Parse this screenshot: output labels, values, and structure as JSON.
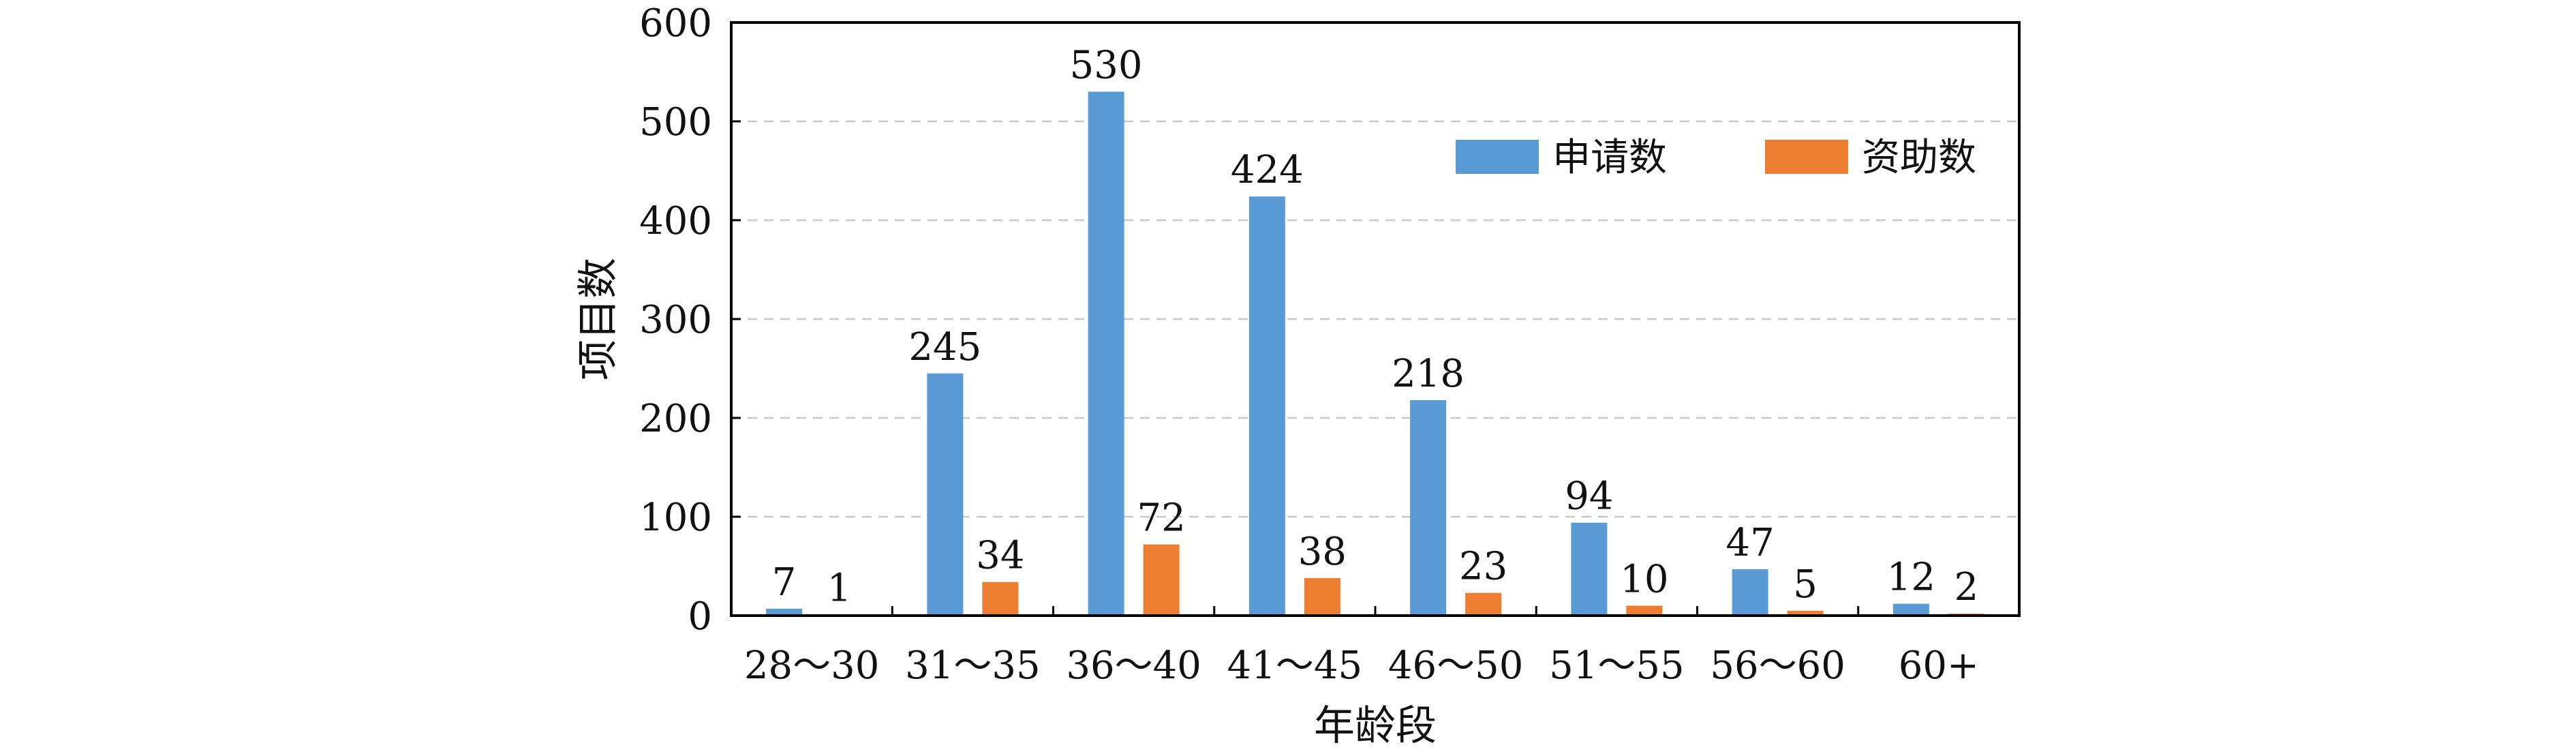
{
  "chart_data": {
    "type": "bar",
    "categories": [
      "28～30",
      "31～35",
      "36～40",
      "41～45",
      "46～50",
      "51～55",
      "56～60",
      "60+"
    ],
    "series": [
      {
        "name": "申请数",
        "values": [
          7,
          245,
          530,
          424,
          218,
          94,
          47,
          12
        ],
        "color": "#5b9bd5"
      },
      {
        "name": "资助数",
        "values": [
          1,
          34,
          72,
          38,
          23,
          10,
          5,
          2
        ],
        "color": "#ed7d31"
      }
    ],
    "xlabel": "年龄段",
    "ylabel": "项目数",
    "ylim": [
      0,
      600
    ],
    "yticks": [
      0,
      100,
      200,
      300,
      400,
      500,
      600
    ],
    "grid": true,
    "legend_position": "top-right"
  }
}
